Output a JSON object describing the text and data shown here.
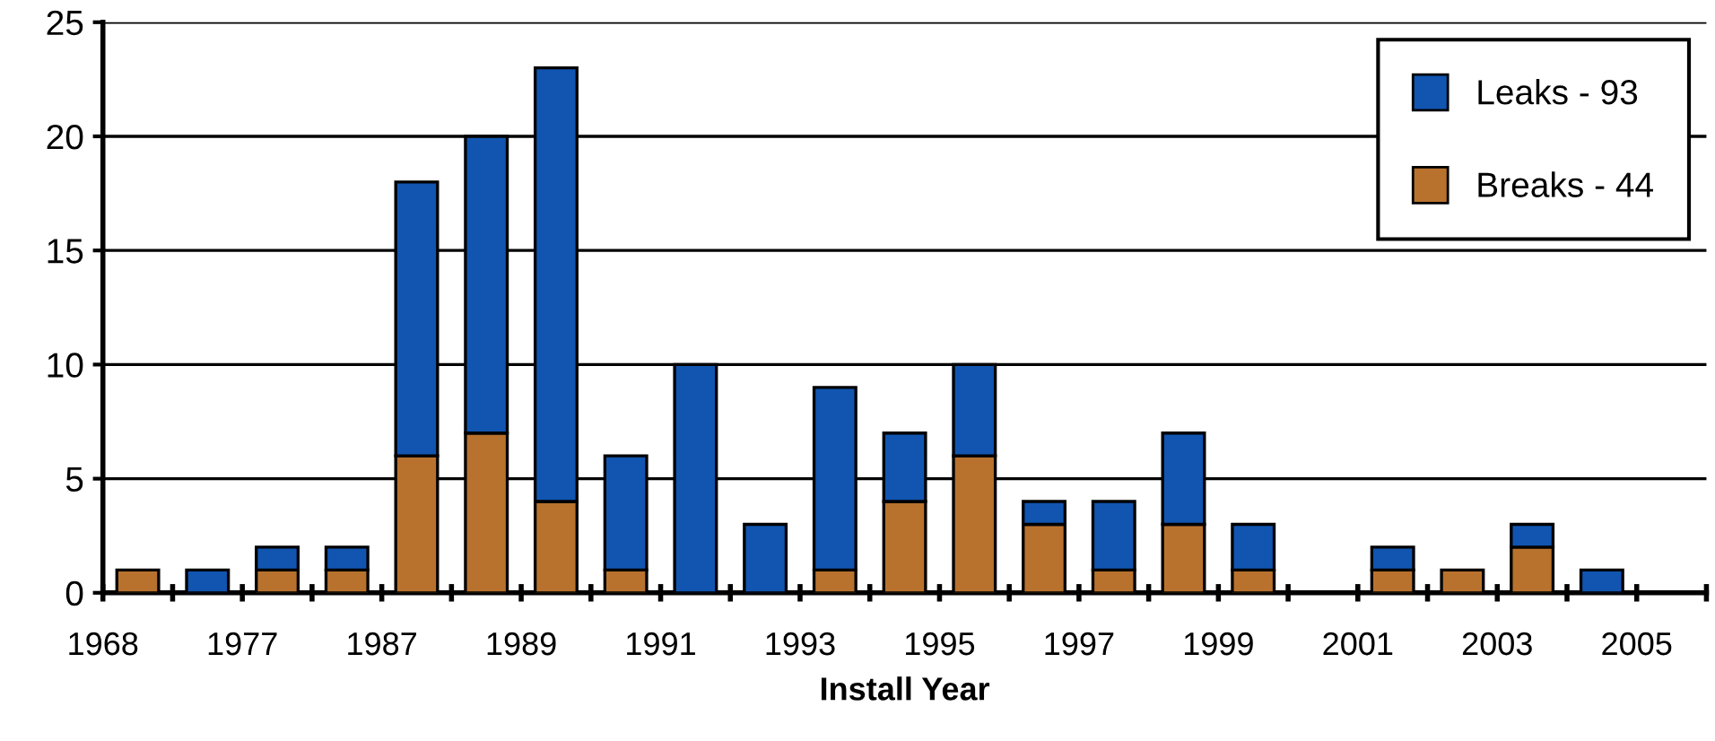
{
  "chart_data": {
    "type": "bar",
    "stacked": true,
    "xlabel": "Install Year",
    "categories": [
      "1968",
      null,
      "1977",
      null,
      "1987",
      null,
      "1989",
      null,
      "1991",
      null,
      "1993",
      null,
      "1995",
      null,
      "1997",
      null,
      "1999",
      null,
      "2001",
      null,
      "2003",
      null,
      "2005"
    ],
    "series": [
      {
        "name": "Breaks - 44",
        "color": "#b8722e",
        "values": [
          1,
          0,
          1,
          1,
          6,
          7,
          4,
          1,
          0,
          0,
          1,
          4,
          6,
          3,
          1,
          3,
          1,
          0,
          1,
          1,
          2,
          0,
          0
        ]
      },
      {
        "name": "Leaks - 93",
        "color": "#1155b0",
        "values": [
          0,
          1,
          1,
          1,
          12,
          13,
          19,
          5,
          10,
          3,
          8,
          3,
          4,
          1,
          3,
          4,
          2,
          0,
          1,
          0,
          1,
          1,
          0
        ]
      }
    ],
    "ylim": [
      0,
      25
    ],
    "yticks": [
      0,
      5,
      10,
      15,
      20,
      25
    ],
    "grid": "y",
    "legend": "top right"
  }
}
